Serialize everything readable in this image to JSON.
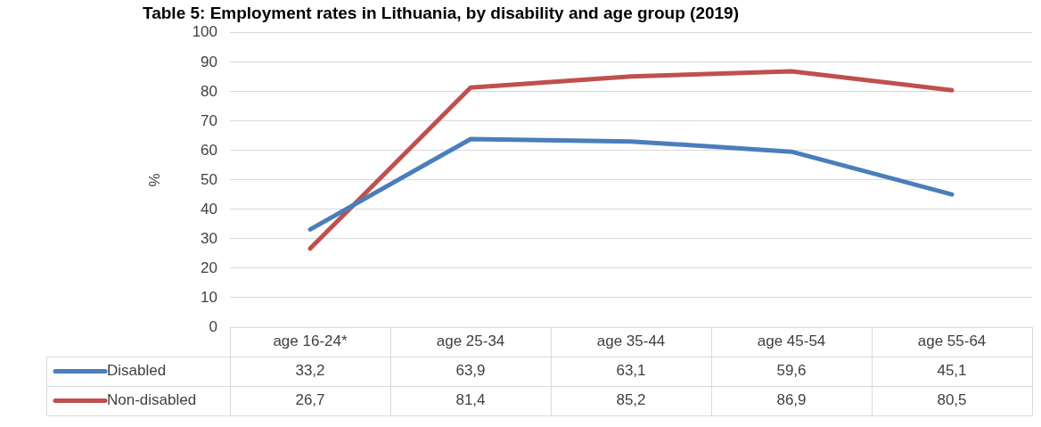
{
  "chart_data": {
    "type": "line",
    "title": "Table 5: Employment rates in Lithuania, by disability and age group (2019)",
    "ylabel": "%",
    "categories": [
      "age 16-24*",
      "age 25-34",
      "age 35-44",
      "age 45-54",
      "age 55-64"
    ],
    "series": [
      {
        "name": "Disabled",
        "color": "#4a7ebb",
        "values": [
          33.2,
          63.9,
          63.1,
          59.6,
          45.1
        ],
        "value_labels": [
          "33,2",
          "63,9",
          "63,1",
          "59,6",
          "45,1"
        ]
      },
      {
        "name": "Non-disabled",
        "color": "#c0504d",
        "values": [
          26.7,
          81.4,
          85.2,
          86.9,
          80.5
        ],
        "value_labels": [
          "26,7",
          "81,4",
          "85,2",
          "86,9",
          "80,5"
        ]
      }
    ],
    "ylim": [
      0,
      100
    ],
    "yticks": [
      0,
      10,
      20,
      30,
      40,
      50,
      60,
      70,
      80,
      90,
      100
    ],
    "grid": "y",
    "legend": "bottom",
    "marker": "none",
    "line_style": "solid"
  }
}
